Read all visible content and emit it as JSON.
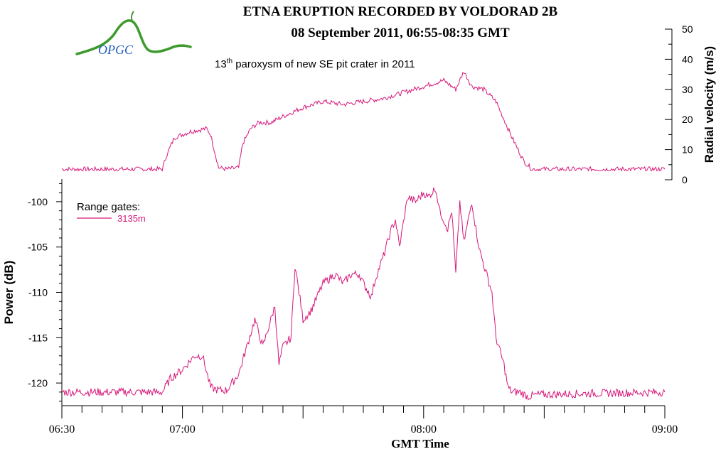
{
  "title": "ETNA ERUPTION RECORDED BY VOLDORAD 2B",
  "subtitle": "08 September 2011, 06:55-08:35 GMT",
  "annotation": {
    "ordinal": "13",
    "ordinal_suffix": "th",
    "text": " paroxysm of new SE pit crater in 2011"
  },
  "logo": {
    "text": "OPGC"
  },
  "colors": {
    "series": "#d6177a",
    "axis": "#000000",
    "logo_green": "#3d9a2c",
    "logo_text": "#1d5bbf"
  },
  "chart_data": [
    {
      "type": "line",
      "ylabel": "Radial velocity (m/s)",
      "ylim": [
        0,
        50
      ],
      "xlim": [
        "06:30",
        "09:00"
      ],
      "yticks": [
        0,
        10,
        20,
        30,
        40,
        50
      ],
      "ytick_labels": [
        "0",
        "10",
        "20",
        "30",
        "40",
        "50"
      ],
      "grid": false,
      "series": [
        {
          "x": [
            "06:30",
            "06:55",
            "06:56",
            "06:58",
            "07:02",
            "07:06",
            "07:07",
            "07:09",
            "07:11",
            "07:14",
            "07:15",
            "07:17",
            "07:19",
            "07:22",
            "07:25",
            "07:30",
            "07:35",
            "07:40",
            "07:45",
            "07:50",
            "07:55",
            "08:00",
            "08:05",
            "08:08",
            "08:10",
            "08:12",
            "08:15",
            "08:18",
            "08:20",
            "08:22",
            "08:25",
            "08:27",
            "08:29",
            "09:00"
          ],
          "y": [
            3.5,
            3.5,
            8,
            14,
            16,
            17,
            15,
            4,
            3.5,
            4,
            12,
            17,
            19,
            19,
            21,
            24,
            26,
            25,
            26,
            27,
            29,
            31,
            33,
            30,
            36,
            31,
            30,
            26,
            20,
            14,
            6,
            3.5,
            3.5,
            3.5
          ]
        }
      ]
    },
    {
      "type": "line",
      "ylabel": "Power (dB)",
      "xlabel": "GMT Time",
      "ylim": [
        -122.5,
        -97.5
      ],
      "xlim": [
        "06:30",
        "09:00"
      ],
      "yticks": [
        -120,
        -115,
        -110,
        -105,
        -100
      ],
      "ytick_labels": [
        "-120",
        "-115",
        "-110",
        "-105",
        "-100"
      ],
      "xticks": [
        "06:30",
        "07:00",
        "08:00",
        "09:00"
      ],
      "xtick_labels": [
        "06:30",
        "07:00",
        "08:00",
        "09:00"
      ],
      "grid": false,
      "legend": {
        "title": "Range gates:",
        "placement": "top-left",
        "entries": [
          "3135m"
        ]
      },
      "series": [
        {
          "name": "3135m",
          "x": [
            "06:30",
            "06:55",
            "06:57",
            "07:00",
            "07:03",
            "07:05",
            "07:07",
            "07:09",
            "07:11",
            "07:14",
            "07:16",
            "07:18",
            "07:20",
            "07:22",
            "07:23",
            "07:24",
            "07:25",
            "07:27",
            "07:28",
            "07:30",
            "07:32",
            "07:35",
            "07:38",
            "07:40",
            "07:42",
            "07:44",
            "07:45",
            "07:47",
            "07:48",
            "07:50",
            "07:52",
            "07:53",
            "07:54",
            "07:56",
            "07:58",
            "08:00",
            "08:01",
            "08:03",
            "08:04",
            "08:06",
            "08:07",
            "08:08",
            "08:09",
            "08:10",
            "08:12",
            "08:13",
            "08:14",
            "08:15",
            "08:17",
            "08:18",
            "08:20",
            "08:21",
            "08:22",
            "08:24",
            "08:26",
            "08:28",
            "08:35",
            "09:00"
          ],
          "y": [
            -121,
            -121,
            -119.5,
            -118.5,
            -117,
            -117,
            -120.5,
            -120.8,
            -120.8,
            -119,
            -116,
            -113,
            -116,
            -113,
            -111.5,
            -118,
            -116,
            -115,
            -107,
            -113,
            -112,
            -109,
            -108,
            -109,
            -108,
            -108,
            -109,
            -110.5,
            -108.5,
            -106,
            -103,
            -102,
            -105,
            -99.5,
            -100,
            -99,
            -99.5,
            -98.5,
            -101,
            -103,
            -101,
            -108,
            -100,
            -104.5,
            -100,
            -103,
            -105.5,
            -107,
            -110,
            -115,
            -118,
            -120.5,
            -121,
            -121,
            -121.5,
            -121.3,
            -121.2,
            -121
          ]
        }
      ]
    }
  ]
}
